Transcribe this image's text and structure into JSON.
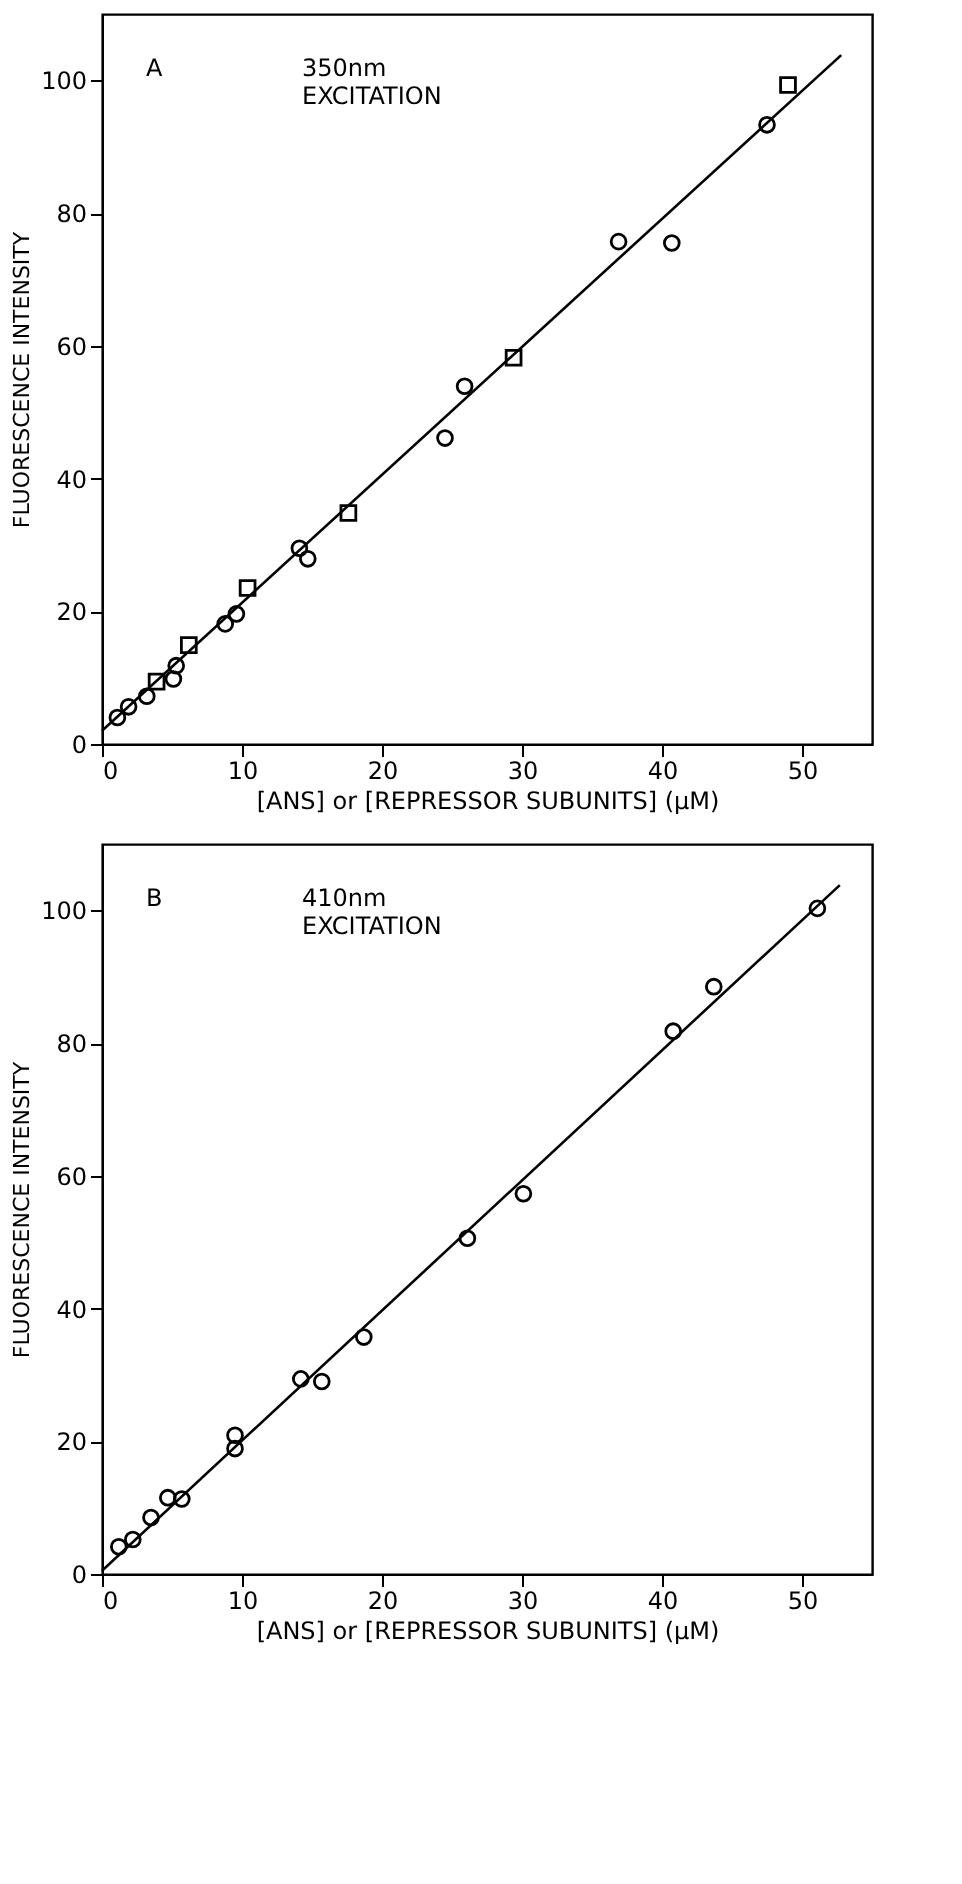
{
  "chart_data": [
    {
      "type": "scatter",
      "annotations": [
        "A",
        "350nm EXCITATION"
      ],
      "xlabel": "[ANS] or [REPRESSOR SUBUNITS] (μM)",
      "ylabel": "FLUORESCENCE INTENSITY",
      "xlim": [
        0,
        55
      ],
      "ylim": [
        0,
        110
      ],
      "xticks": [
        0,
        10,
        20,
        30,
        40,
        50
      ],
      "yticks": [
        0,
        20,
        40,
        60,
        80,
        100
      ],
      "grid": false,
      "series": [
        {
          "marker": "circle",
          "color": "#000000",
          "x": [
            5.1,
            9.6,
            14.1,
            25.9,
            36.9,
            47.5
          ],
          "values": [
            9.8,
            19.6,
            29.5,
            53.9,
            75.7,
            93.3
          ]
        },
        {
          "marker": "circle",
          "color": "#000000",
          "x": [
            1.1,
            1.9,
            3.2,
            5.3,
            8.8,
            14.7,
            24.5,
            40.7
          ],
          "values": [
            4.0,
            5.6,
            7.2,
            11.8,
            18.1,
            27.9,
            46.1,
            75.5
          ]
        },
        {
          "marker": "square",
          "color": "#000000",
          "x": [
            3.9,
            6.2,
            10.4,
            17.6,
            29.4,
            49.0
          ],
          "values": [
            9.4,
            14.9,
            23.5,
            34.8,
            58.2,
            99.3
          ]
        },
        {
          "type": "line",
          "marker": "none",
          "line_style": "solid",
          "color": "#000000",
          "x": [
            0,
            52.8
          ],
          "values": [
            2.0,
            103.8
          ]
        }
      ]
    },
    {
      "type": "scatter",
      "annotations": [
        "B",
        "410nm EXCITATION"
      ],
      "xlabel": "[ANS] or [REPRESSOR SUBUNITS] (μM)",
      "ylabel": "FLUORESCENCE INTENSITY",
      "xlim": [
        0,
        55
      ],
      "ylim": [
        0,
        110
      ],
      "xticks": [
        0,
        10,
        20,
        30,
        40,
        50
      ],
      "yticks": [
        0,
        20,
        40,
        60,
        80,
        100
      ],
      "grid": false,
      "series": [
        {
          "marker": "circle",
          "color": "#000000",
          "x": [
            4.7,
            9.5,
            14.2,
            18.7,
            30.1,
            40.8,
            51.1
          ],
          "values": [
            11.5,
            18.9,
            29.4,
            35.7,
            57.3,
            81.8,
            100.3
          ]
        },
        {
          "marker": "circle",
          "color": "#000000",
          "x": [
            1.2,
            2.2,
            3.5,
            5.7,
            9.5,
            15.7,
            26.1,
            43.7
          ],
          "values": [
            4.1,
            5.2,
            8.5,
            11.3,
            20.9,
            29.0,
            50.6,
            88.5
          ]
        },
        {
          "type": "line",
          "marker": "none",
          "line_style": "solid",
          "color": "#000000",
          "x": [
            0,
            52.7
          ],
          "values": [
            0.5,
            103.8
          ]
        }
      ]
    }
  ]
}
